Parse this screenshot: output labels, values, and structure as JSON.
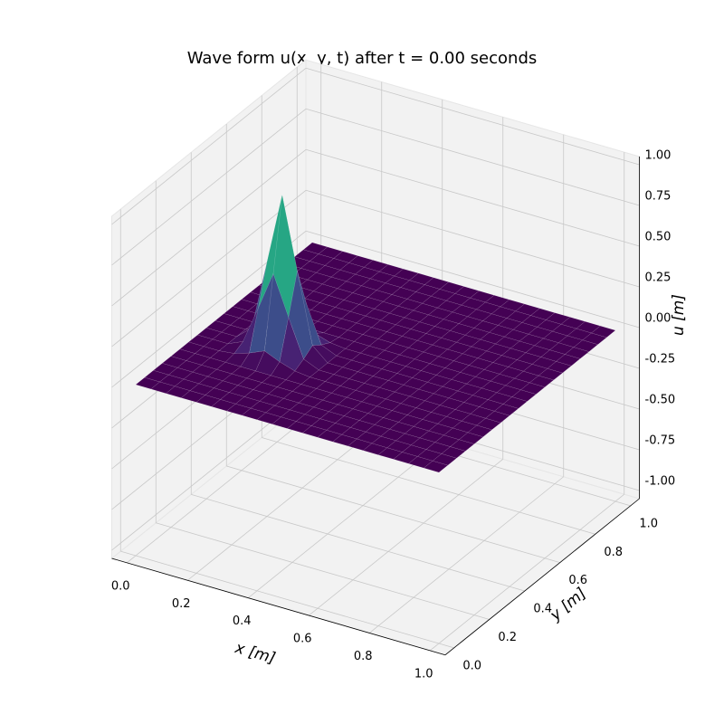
{
  "chart_data": {
    "type": "surface",
    "title": "Wave form u(x, y, t) after t = 0.00 seconds",
    "xlabel": "x [m]",
    "ylabel": "y [m]",
    "zlabel": "u [m]",
    "colormap": "viridis",
    "x": [
      0,
      0.05,
      0.1,
      0.15,
      0.2,
      0.25,
      0.3,
      0.35,
      0.4,
      0.45,
      0.5,
      0.55,
      0.6,
      0.65,
      0.7,
      0.75,
      0.8,
      0.85,
      0.9,
      0.95,
      1
    ],
    "y": [
      0,
      0.05,
      0.1,
      0.15,
      0.2,
      0.25,
      0.3,
      0.35,
      0.4,
      0.45,
      0.5,
      0.55,
      0.6,
      0.65,
      0.7,
      0.75,
      0.8,
      0.85,
      0.9,
      0.95,
      1
    ],
    "z": [
      [
        0,
        0,
        0,
        0,
        0,
        0,
        0,
        0,
        0,
        0,
        0,
        0,
        0,
        0,
        0,
        0,
        0,
        0,
        0,
        0,
        0
      ],
      [
        0,
        0,
        0,
        0,
        0,
        0,
        0,
        0,
        0,
        0,
        0,
        0,
        0,
        0,
        0,
        0,
        0,
        0,
        0,
        0,
        0
      ],
      [
        0,
        0,
        0,
        0,
        0,
        0,
        0,
        0,
        0,
        0,
        0,
        0,
        0,
        0,
        0,
        0,
        0,
        0,
        0,
        0,
        0
      ],
      [
        0,
        0,
        0,
        0,
        0,
        0,
        0,
        0,
        0,
        0,
        0,
        0,
        0,
        0,
        0,
        0,
        0,
        0,
        0,
        0,
        0
      ],
      [
        0,
        0,
        0,
        0,
        0,
        0,
        0,
        0,
        0,
        0,
        0,
        0,
        0,
        0,
        0,
        0,
        0,
        0,
        0,
        0,
        0
      ],
      [
        0,
        0,
        0,
        0,
        0,
        0,
        0,
        0,
        0,
        0,
        0,
        0,
        0,
        0,
        0,
        0,
        0,
        0,
        0,
        0,
        0
      ],
      [
        0,
        0,
        0,
        0.01,
        0.04,
        0.08,
        0.04,
        0.01,
        0,
        0,
        0,
        0,
        0,
        0,
        0,
        0,
        0,
        0,
        0,
        0,
        0
      ],
      [
        0,
        0,
        0,
        0.04,
        0.27,
        0.51,
        0.27,
        0.04,
        0,
        0,
        0,
        0,
        0,
        0,
        0,
        0,
        0,
        0,
        0,
        0,
        0
      ],
      [
        0,
        0,
        0,
        0.08,
        0.51,
        0.95,
        0.51,
        0.08,
        0,
        0,
        0,
        0,
        0,
        0,
        0,
        0,
        0,
        0,
        0,
        0,
        0
      ],
      [
        0,
        0,
        0,
        0.04,
        0.27,
        0.51,
        0.27,
        0.04,
        0,
        0,
        0,
        0,
        0,
        0,
        0,
        0,
        0,
        0,
        0,
        0,
        0
      ],
      [
        0,
        0,
        0,
        0.01,
        0.04,
        0.08,
        0.04,
        0.01,
        0,
        0,
        0,
        0,
        0,
        0,
        0,
        0,
        0,
        0,
        0,
        0,
        0
      ],
      [
        0,
        0,
        0,
        0,
        0,
        0,
        0,
        0,
        0,
        0,
        0,
        0,
        0,
        0,
        0,
        0,
        0,
        0,
        0,
        0,
        0
      ],
      [
        0,
        0,
        0,
        0,
        0,
        0,
        0,
        0,
        0,
        0,
        0,
        0,
        0,
        0,
        0,
        0,
        0,
        0,
        0,
        0,
        0
      ],
      [
        0,
        0,
        0,
        0,
        0,
        0,
        0,
        0,
        0,
        0,
        0,
        0,
        0,
        0,
        0,
        0,
        0,
        0,
        0,
        0,
        0
      ],
      [
        0,
        0,
        0,
        0,
        0,
        0,
        0,
        0,
        0,
        0,
        0,
        0,
        0,
        0,
        0,
        0,
        0,
        0,
        0,
        0,
        0
      ],
      [
        0,
        0,
        0,
        0,
        0,
        0,
        0,
        0,
        0,
        0,
        0,
        0,
        0,
        0,
        0,
        0,
        0,
        0,
        0,
        0,
        0
      ],
      [
        0,
        0,
        0,
        0,
        0,
        0,
        0,
        0,
        0,
        0,
        0,
        0,
        0,
        0,
        0,
        0,
        0,
        0,
        0,
        0,
        0
      ],
      [
        0,
        0,
        0,
        0,
        0,
        0,
        0,
        0,
        0,
        0,
        0,
        0,
        0,
        0,
        0,
        0,
        0,
        0,
        0,
        0,
        0
      ],
      [
        0,
        0,
        0,
        0,
        0,
        0,
        0,
        0,
        0,
        0,
        0,
        0,
        0,
        0,
        0,
        0,
        0,
        0,
        0,
        0,
        0
      ],
      [
        0,
        0,
        0,
        0,
        0,
        0,
        0,
        0,
        0,
        0,
        0,
        0,
        0,
        0,
        0,
        0,
        0,
        0,
        0,
        0,
        0
      ],
      [
        0,
        0,
        0,
        0,
        0,
        0,
        0,
        0,
        0,
        0,
        0,
        0,
        0,
        0,
        0,
        0,
        0,
        0,
        0,
        0,
        0
      ]
    ],
    "xlim": [
      -0.05,
      1.05
    ],
    "ylim": [
      -0.05,
      1.05
    ],
    "zlim": [
      -1.05,
      1.05
    ],
    "xticks": [
      {
        "value": 0,
        "label": "0.0"
      },
      0.2,
      0.4,
      0.6,
      0.8,
      {
        "value": 1,
        "label": "1.0"
      }
    ],
    "yticks": [
      {
        "value": 0,
        "label": "0.0"
      },
      0.2,
      0.4,
      0.6,
      0.8,
      {
        "value": 1,
        "label": "1.0"
      }
    ],
    "zticks": [
      {
        "value": -1,
        "label": "-1.00"
      },
      {
        "value": -0.75,
        "label": "-0.75"
      },
      {
        "value": -0.5,
        "label": "-0.50"
      },
      {
        "value": -0.25,
        "label": "-0.25"
      },
      {
        "value": 0,
        "label": "0.00"
      },
      {
        "value": 0.25,
        "label": "0.25"
      },
      {
        "value": 0.5,
        "label": "0.50"
      },
      {
        "value": 0.75,
        "label": "0.75"
      },
      {
        "value": 1,
        "label": "1.00"
      }
    ],
    "grid": true
  }
}
